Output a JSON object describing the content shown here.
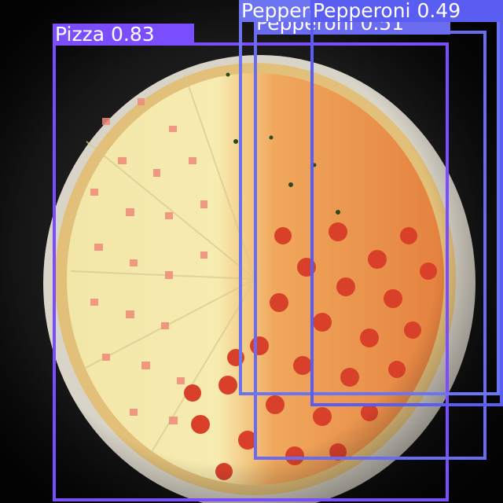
{
  "detections": [
    {
      "label": "Pizza 0.83",
      "color": "#7a4dff"
    },
    {
      "label": "Pepperoni 0.51",
      "color": "#6b6bf0"
    },
    {
      "label": "Pepperoni 0.49",
      "color": "#5a5df2"
    },
    {
      "label": "Pepperoni",
      "color": "#6d74f2"
    }
  ]
}
